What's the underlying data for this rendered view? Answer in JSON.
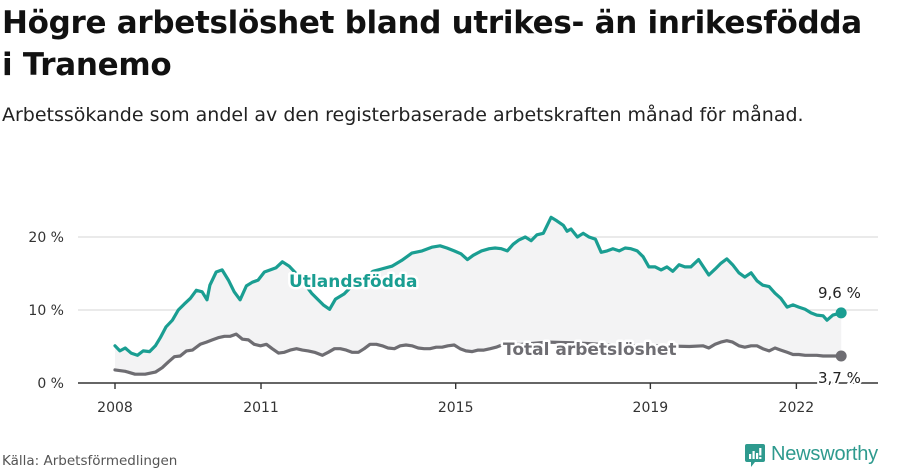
{
  "header": {
    "title": "Högre arbetslöshet bland utrikes- än inrikesfödda i Tranemo",
    "subtitle": "Arbetssökande som andel av den registerbaserade arbetskraften månad för månad."
  },
  "footer": {
    "source": "Källa: Arbetsförmedlingen",
    "brand": "Newsworthy"
  },
  "colors": {
    "utlandsfodda": "#1a9e92",
    "total": "#6e6d72",
    "band": "#f3f3f4",
    "grid": "#dddddd",
    "axis": "#333333",
    "brand": "#2e9a8e"
  },
  "chart_data": {
    "type": "line",
    "title": "Högre arbetslöshet bland utrikes- än inrikesfödda i Tranemo",
    "subtitle": "Arbetssökande som andel av den registerbaserade arbetskraften månad för månad.",
    "xlabel": "",
    "ylabel": "",
    "ylim": [
      0,
      20
    ],
    "yticks": [
      {
        "value": 0,
        "label": "0 %"
      },
      {
        "value": 10,
        "label": "10 %"
      },
      {
        "value": 20,
        "label": "20 %"
      }
    ],
    "xticks": [
      {
        "value": 2008,
        "label": "2008"
      },
      {
        "value": 2011,
        "label": "2011"
      },
      {
        "value": 2015,
        "label": "2015"
      },
      {
        "value": 2019,
        "label": "2019"
      },
      {
        "value": 2022,
        "label": "2022"
      }
    ],
    "xlim": [
      2008,
      2022.95
    ],
    "grid": true,
    "legend": "inline labels",
    "series": [
      {
        "name": "Utlandsfödda",
        "end_label": "9,6 %",
        "points": [
          [
            2008.0,
            5.1
          ],
          [
            2008.1,
            4.4
          ],
          [
            2008.21,
            4.8
          ],
          [
            2008.33,
            4.1
          ],
          [
            2008.46,
            3.8
          ],
          [
            2008.58,
            4.4
          ],
          [
            2008.71,
            4.3
          ],
          [
            2008.83,
            5.1
          ],
          [
            2008.93,
            6.2
          ],
          [
            2009.05,
            7.7
          ],
          [
            2009.18,
            8.6
          ],
          [
            2009.3,
            10.0
          ],
          [
            2009.42,
            10.8
          ],
          [
            2009.55,
            11.6
          ],
          [
            2009.67,
            12.7
          ],
          [
            2009.79,
            12.5
          ],
          [
            2009.89,
            11.4
          ],
          [
            2009.95,
            13.4
          ],
          [
            2010.08,
            15.2
          ],
          [
            2010.2,
            15.5
          ],
          [
            2010.33,
            14.1
          ],
          [
            2010.45,
            12.5
          ],
          [
            2010.57,
            11.4
          ],
          [
            2010.7,
            13.3
          ],
          [
            2010.82,
            13.8
          ],
          [
            2010.94,
            14.1
          ],
          [
            2011.07,
            15.2
          ],
          [
            2011.19,
            15.5
          ],
          [
            2011.31,
            15.8
          ],
          [
            2011.44,
            16.6
          ],
          [
            2011.58,
            16.0
          ],
          [
            2011.75,
            14.8
          ],
          [
            2011.87,
            13.8
          ],
          [
            2012.04,
            12.3
          ],
          [
            2012.16,
            11.5
          ],
          [
            2012.28,
            10.7
          ],
          [
            2012.41,
            10.1
          ],
          [
            2012.53,
            11.5
          ],
          [
            2012.71,
            12.2
          ],
          [
            2012.9,
            13.5
          ],
          [
            2013.14,
            14.5
          ],
          [
            2013.3,
            15.3
          ],
          [
            2013.69,
            16.0
          ],
          [
            2013.89,
            16.8
          ],
          [
            2014.1,
            17.8
          ],
          [
            2014.31,
            18.1
          ],
          [
            2014.51,
            18.6
          ],
          [
            2014.68,
            18.8
          ],
          [
            2014.82,
            18.5
          ],
          [
            2014.97,
            18.1
          ],
          [
            2015.11,
            17.7
          ],
          [
            2015.24,
            16.9
          ],
          [
            2015.36,
            17.5
          ],
          [
            2015.53,
            18.1
          ],
          [
            2015.69,
            18.4
          ],
          [
            2015.81,
            18.5
          ],
          [
            2015.94,
            18.4
          ],
          [
            2016.06,
            18.1
          ],
          [
            2016.18,
            19.0
          ],
          [
            2016.3,
            19.6
          ],
          [
            2016.43,
            20.0
          ],
          [
            2016.55,
            19.5
          ],
          [
            2016.67,
            20.3
          ],
          [
            2016.8,
            20.5
          ],
          [
            2016.88,
            21.6
          ],
          [
            2016.96,
            22.7
          ],
          [
            2017.08,
            22.2
          ],
          [
            2017.21,
            21.6
          ],
          [
            2017.29,
            20.8
          ],
          [
            2017.37,
            21.1
          ],
          [
            2017.5,
            20.0
          ],
          [
            2017.62,
            20.5
          ],
          [
            2017.74,
            20.0
          ],
          [
            2017.87,
            19.7
          ],
          [
            2017.99,
            17.9
          ],
          [
            2018.11,
            18.1
          ],
          [
            2018.23,
            18.4
          ],
          [
            2018.36,
            18.1
          ],
          [
            2018.48,
            18.5
          ],
          [
            2018.6,
            18.4
          ],
          [
            2018.73,
            18.1
          ],
          [
            2018.85,
            17.3
          ],
          [
            2018.97,
            15.9
          ],
          [
            2019.1,
            15.9
          ],
          [
            2019.22,
            15.5
          ],
          [
            2019.34,
            15.9
          ],
          [
            2019.46,
            15.3
          ],
          [
            2019.59,
            16.2
          ],
          [
            2019.71,
            15.9
          ],
          [
            2019.83,
            15.9
          ],
          [
            2019.99,
            16.9
          ],
          [
            2020.12,
            15.6
          ],
          [
            2020.2,
            14.8
          ],
          [
            2020.33,
            15.6
          ],
          [
            2020.45,
            16.4
          ],
          [
            2020.57,
            17.0
          ],
          [
            2020.69,
            16.2
          ],
          [
            2020.82,
            15.1
          ],
          [
            2020.94,
            14.5
          ],
          [
            2021.07,
            15.1
          ],
          [
            2021.19,
            14.0
          ],
          [
            2021.31,
            13.4
          ],
          [
            2021.44,
            13.2
          ],
          [
            2021.56,
            12.3
          ],
          [
            2021.68,
            11.6
          ],
          [
            2021.81,
            10.4
          ],
          [
            2021.93,
            10.7
          ],
          [
            2022.05,
            10.4
          ],
          [
            2022.18,
            10.1
          ],
          [
            2022.3,
            9.6
          ],
          [
            2022.42,
            9.3
          ],
          [
            2022.55,
            9.2
          ],
          [
            2022.63,
            8.6
          ],
          [
            2022.75,
            9.3
          ],
          [
            2022.92,
            9.6
          ]
        ]
      },
      {
        "name": "Total arbetslöshet",
        "end_label": "3,7 %",
        "points": [
          [
            2008.0,
            1.8
          ],
          [
            2008.21,
            1.6
          ],
          [
            2008.41,
            1.2
          ],
          [
            2008.62,
            1.2
          ],
          [
            2008.83,
            1.5
          ],
          [
            2008.97,
            2.1
          ],
          [
            2009.1,
            2.9
          ],
          [
            2009.22,
            3.6
          ],
          [
            2009.34,
            3.7
          ],
          [
            2009.47,
            4.4
          ],
          [
            2009.59,
            4.5
          ],
          [
            2009.75,
            5.3
          ],
          [
            2009.88,
            5.6
          ],
          [
            2010.0,
            5.9
          ],
          [
            2010.12,
            6.2
          ],
          [
            2010.25,
            6.4
          ],
          [
            2010.37,
            6.4
          ],
          [
            2010.49,
            6.7
          ],
          [
            2010.62,
            6.0
          ],
          [
            2010.74,
            5.9
          ],
          [
            2010.86,
            5.3
          ],
          [
            2010.99,
            5.1
          ],
          [
            2011.11,
            5.3
          ],
          [
            2011.23,
            4.7
          ],
          [
            2011.36,
            4.1
          ],
          [
            2011.48,
            4.2
          ],
          [
            2011.6,
            4.5
          ],
          [
            2011.73,
            4.7
          ],
          [
            2011.85,
            4.5
          ],
          [
            2011.97,
            4.4
          ],
          [
            2012.1,
            4.2
          ],
          [
            2012.26,
            3.8
          ],
          [
            2012.38,
            4.2
          ],
          [
            2012.51,
            4.7
          ],
          [
            2012.63,
            4.7
          ],
          [
            2012.75,
            4.5
          ],
          [
            2012.87,
            4.2
          ],
          [
            2013.0,
            4.2
          ],
          [
            2013.12,
            4.7
          ],
          [
            2013.24,
            5.3
          ],
          [
            2013.37,
            5.3
          ],
          [
            2013.49,
            5.1
          ],
          [
            2013.61,
            4.8
          ],
          [
            2013.74,
            4.7
          ],
          [
            2013.86,
            5.1
          ],
          [
            2013.98,
            5.2
          ],
          [
            2014.1,
            5.1
          ],
          [
            2014.23,
            4.8
          ],
          [
            2014.35,
            4.7
          ],
          [
            2014.47,
            4.7
          ],
          [
            2014.6,
            4.9
          ],
          [
            2014.72,
            4.9
          ],
          [
            2014.84,
            5.1
          ],
          [
            2014.97,
            5.2
          ],
          [
            2015.09,
            4.7
          ],
          [
            2015.21,
            4.4
          ],
          [
            2015.34,
            4.3
          ],
          [
            2015.46,
            4.5
          ],
          [
            2015.58,
            4.5
          ],
          [
            2015.71,
            4.7
          ],
          [
            2015.83,
            4.9
          ],
          [
            2015.95,
            5.2
          ],
          [
            2016.35,
            5.3
          ],
          [
            2016.9,
            5.6
          ],
          [
            2017.45,
            5.5
          ],
          [
            2018.0,
            5.3
          ],
          [
            2018.6,
            5.1
          ],
          [
            2019.2,
            5.1
          ],
          [
            2019.8,
            5.0
          ],
          [
            2020.08,
            5.1
          ],
          [
            2020.2,
            4.8
          ],
          [
            2020.33,
            5.3
          ],
          [
            2020.45,
            5.6
          ],
          [
            2020.57,
            5.8
          ],
          [
            2020.69,
            5.6
          ],
          [
            2020.82,
            5.1
          ],
          [
            2020.94,
            4.9
          ],
          [
            2021.07,
            5.1
          ],
          [
            2021.19,
            5.1
          ],
          [
            2021.31,
            4.7
          ],
          [
            2021.44,
            4.4
          ],
          [
            2021.56,
            4.8
          ],
          [
            2021.68,
            4.5
          ],
          [
            2021.81,
            4.2
          ],
          [
            2021.93,
            3.9
          ],
          [
            2022.05,
            3.9
          ],
          [
            2022.18,
            3.8
          ],
          [
            2022.3,
            3.8
          ],
          [
            2022.42,
            3.8
          ],
          [
            2022.55,
            3.7
          ],
          [
            2022.92,
            3.7
          ]
        ],
        "hidden_ranges": [
          [
            2016.0,
            2019.9
          ]
        ]
      }
    ],
    "annotations": [
      {
        "text": "Utlandsfödda",
        "series": "Utlandsfödda"
      },
      {
        "text": "Total arbetslöshet",
        "series": "Total arbetslöshet"
      },
      {
        "text": "9,6 %",
        "series": "Utlandsfödda",
        "position": "end"
      },
      {
        "text": "3,7 %",
        "series": "Total arbetslöshet",
        "position": "end"
      }
    ]
  }
}
